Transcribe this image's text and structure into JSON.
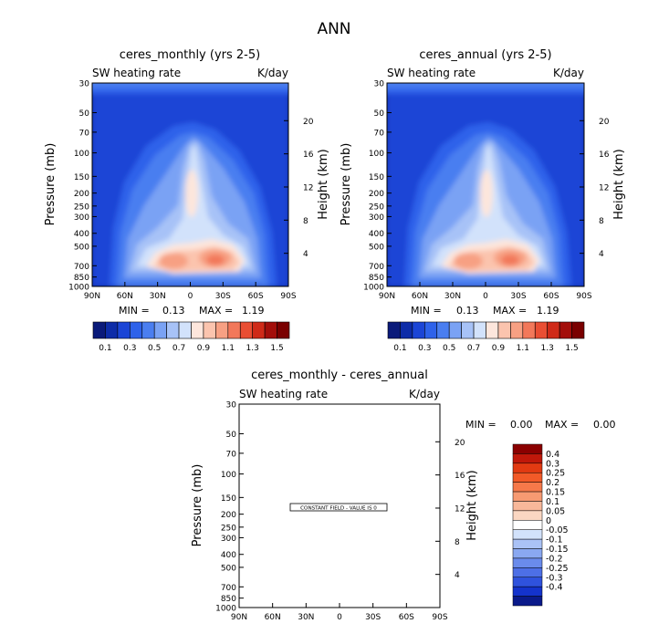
{
  "figure_title": "ANN",
  "colors": {
    "ramp": [
      "#0a1a7a",
      "#0d2ca8",
      "#1b45d6",
      "#2e62ea",
      "#4a7ef0",
      "#7aa2f4",
      "#a7c2f7",
      "#d2e2fb",
      "#fde6dc",
      "#fbc4ae",
      "#f7a083",
      "#f2785a",
      "#e94e33",
      "#cf2a18",
      "#a30e0a",
      "#7a0000"
    ],
    "diff_ramp": [
      "#8b0000",
      "#c0180a",
      "#e23a12",
      "#f25a28",
      "#f6794a",
      "#f79a72",
      "#f8b89a",
      "#fbd7c2",
      "#ffffff",
      "#d2e2fb",
      "#aac2f6",
      "#8aa8f1",
      "#6a8bec",
      "#4d6fe6",
      "#2f52dd",
      "#1433cc",
      "#0a1a8a"
    ]
  },
  "chart_data": [
    {
      "type": "heatmap",
      "title": "ceres_monthly (yrs 2-5)",
      "left_label": "SW heating rate",
      "right_label": "K/day",
      "ylabel": "Pressure (mb)",
      "ylabel_right": "Height (km)",
      "xticks": [
        "90N",
        "60N",
        "30N",
        "0",
        "30S",
        "60S",
        "90S"
      ],
      "yticks": [
        "30",
        "50",
        "70",
        "100",
        "150",
        "200",
        "250",
        "300",
        "400",
        "500",
        "700",
        "850",
        "1000"
      ],
      "height_ticks": [
        "20",
        "16",
        "12",
        "8",
        "4"
      ],
      "min_label": "MIN =",
      "min_value": "0.13",
      "max_label": "MAX =",
      "max_value": "1.19",
      "colorbar_labels": [
        "0.1",
        "0.3",
        "0.5",
        "0.7",
        "0.9",
        "1.1",
        "1.3",
        "1.5"
      ]
    },
    {
      "type": "heatmap",
      "title": "ceres_annual (yrs 2-5)",
      "left_label": "SW heating rate",
      "right_label": "K/day",
      "ylabel": "Pressure (mb)",
      "ylabel_right": "Height (km)",
      "xticks": [
        "90N",
        "60N",
        "30N",
        "0",
        "30S",
        "60S",
        "90S"
      ],
      "yticks": [
        "30",
        "50",
        "70",
        "100",
        "150",
        "200",
        "250",
        "300",
        "400",
        "500",
        "700",
        "850",
        "1000"
      ],
      "height_ticks": [
        "20",
        "16",
        "12",
        "8",
        "4"
      ],
      "min_label": "MIN =",
      "min_value": "0.13",
      "max_label": "MAX =",
      "max_value": "1.19",
      "colorbar_labels": [
        "0.1",
        "0.3",
        "0.5",
        "0.7",
        "0.9",
        "1.1",
        "1.3",
        "1.5"
      ]
    },
    {
      "type": "heatmap",
      "title": "ceres_monthly - ceres_annual",
      "left_label": "SW heating rate",
      "right_label": "K/day",
      "ylabel": "Pressure (mb)",
      "ylabel_right": "Height (km)",
      "xticks": [
        "90N",
        "60N",
        "30N",
        "0",
        "30S",
        "60S",
        "90S"
      ],
      "yticks": [
        "30",
        "50",
        "70",
        "100",
        "150",
        "200",
        "250",
        "300",
        "400",
        "500",
        "700",
        "850",
        "1000"
      ],
      "height_ticks": [
        "20",
        "16",
        "12",
        "8",
        "4"
      ],
      "min_label": "MIN =",
      "min_value": "0.00",
      "max_label": "MAX =",
      "max_value": "0.00",
      "annotation": "CONSTANT FIELD - VALUE IS 0",
      "colorbar_labels": [
        "0.4",
        "0.3",
        "0.25",
        "0.2",
        "0.15",
        "0.1",
        "0.05",
        "0",
        "-0.05",
        "-0.1",
        "-0.15",
        "-0.2",
        "-0.25",
        "-0.3",
        "-0.4"
      ]
    }
  ]
}
